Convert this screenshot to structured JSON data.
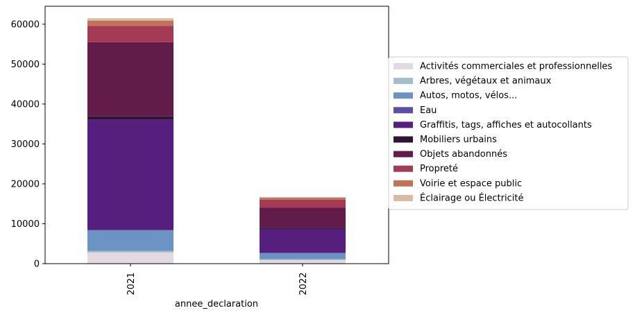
{
  "chart_data": {
    "type": "bar",
    "stacked": true,
    "categories": [
      "2021",
      "2022"
    ],
    "xlabel": "annee_declaration",
    "ylabel": "",
    "ylim": [
      0,
      64500
    ],
    "yticks": [
      0,
      10000,
      20000,
      30000,
      40000,
      50000,
      60000
    ],
    "ytick_labels": [
      "0",
      "10000",
      "20000",
      "30000",
      "40000",
      "50000",
      "60000"
    ],
    "grid": false,
    "legend_position": "right",
    "series": [
      {
        "name": "Activités commerciales et professionnelles",
        "color": "#e2d9e2",
        "values": [
          2800,
          900
        ]
      },
      {
        "name": "Arbres, végétaux et animaux",
        "color": "#a3bdcc",
        "values": [
          400,
          200
        ]
      },
      {
        "name": "Autos, motos, vélos...",
        "color": "#6d92c4",
        "values": [
          5200,
          1600
        ]
      },
      {
        "name": "Eau",
        "color": "#5e4fa2",
        "values": [
          0,
          0
        ]
      },
      {
        "name": "Graffitis, tags, affiches et autocollants",
        "color": "#561f7e",
        "values": [
          27700,
          6000
        ]
      },
      {
        "name": "Mobiliers urbains",
        "color": "#2f1438",
        "values": [
          800,
          300
        ]
      },
      {
        "name": "Objets abandonnés",
        "color": "#621c4a",
        "values": [
          18600,
          5000
        ]
      },
      {
        "name": "Propreté",
        "color": "#a23b53",
        "values": [
          4100,
          2000
        ]
      },
      {
        "name": "Voirie et espace public",
        "color": "#c17259",
        "values": [
          1300,
          500
        ]
      },
      {
        "name": "Éclairage ou Électricité",
        "color": "#d6bba7",
        "values": [
          600,
          200
        ]
      }
    ]
  }
}
